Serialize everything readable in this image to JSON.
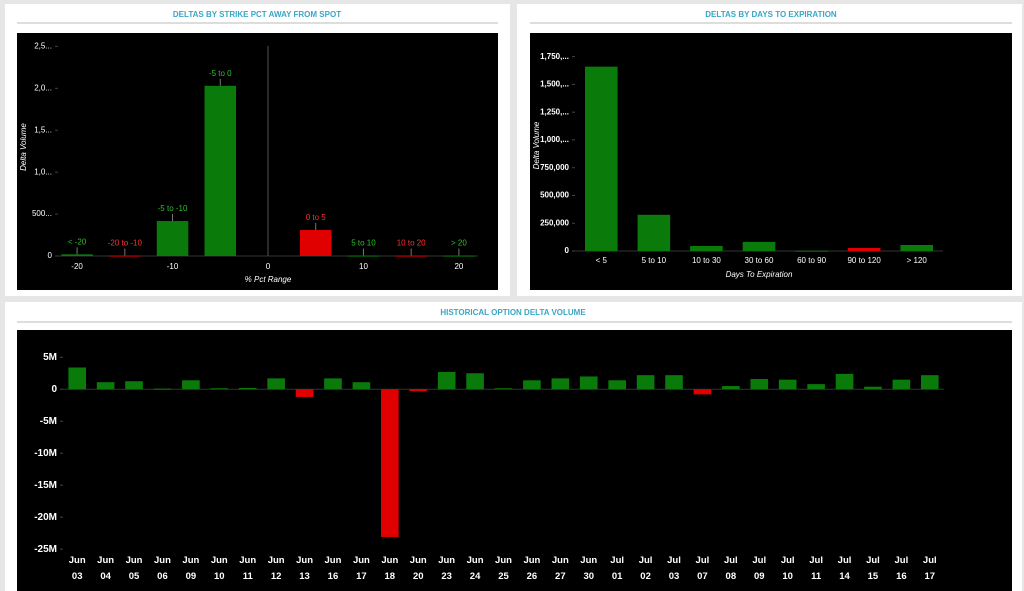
{
  "chart_data": [
    {
      "type": "bar",
      "title": "DELTAS BY STRIKE PCT AWAY FROM SPOT",
      "x_label": "% Pct Range",
      "y_label": "Delta Volume",
      "categories": [
        "< -20",
        "-20 to -10",
        "-5 to -10",
        "-5 to 0",
        "0 to 5",
        "5 to 10",
        "10 to 20",
        "> 20"
      ],
      "x": [
        -20,
        -15,
        -10,
        -5,
        5,
        10,
        15,
        20
      ],
      "values": [
        20000,
        5000,
        417000,
        2030000,
        310000,
        5000,
        5000,
        5000
      ],
      "colors": [
        "#0a7a0a",
        "#e00000",
        "#0a7a0a",
        "#0a7a0a",
        "#e00000",
        "#0a7a0a",
        "#e00000",
        "#0a7a0a"
      ],
      "xlim": [
        -22,
        22
      ],
      "xticks": [
        -20,
        -10,
        0,
        10,
        20
      ],
      "ylim": [
        0,
        2600000
      ],
      "yticks": [
        0,
        {
          "value": 500000,
          "label": "500..."
        },
        {
          "value": 1000000,
          "label": "1,0..."
        },
        {
          "value": 1500000,
          "label": "1,5..."
        },
        {
          "value": 2000000,
          "label": "2,0..."
        },
        {
          "value": 2500000,
          "label": "2,5..."
        }
      ],
      "data_labels": true
    },
    {
      "type": "bar",
      "title": "DELTAS BY DAYS TO EXPIRATION",
      "x_label": "Days To Expiration",
      "y_label": "Delta Volume",
      "categories": [
        "< 5",
        "5 to 10",
        "10 to 30",
        "30 to 60",
        "60 to 90",
        "90 to 120",
        "> 120"
      ],
      "values": [
        1660000,
        326000,
        45000,
        82000,
        3000,
        27000,
        54000
      ],
      "colors": [
        "#0a7a0a",
        "#0a7a0a",
        "#0a7a0a",
        "#0a7a0a",
        "#0a7a0a",
        "#e00000",
        "#0a7a0a"
      ],
      "ylim": [
        0,
        1900000
      ],
      "yticks": [
        0,
        {
          "value": 250000,
          "label": "250,000"
        },
        {
          "value": 500000,
          "label": "500,000"
        },
        {
          "value": 750000,
          "label": "750,000"
        },
        {
          "value": 1000000,
          "label": "1,000,..."
        },
        {
          "value": 1250000,
          "label": "1,250,..."
        },
        {
          "value": 1500000,
          "label": "1,500,..."
        },
        {
          "value": 1750000,
          "label": "1,750,..."
        }
      ]
    },
    {
      "type": "bar",
      "title": "HISTORICAL OPTION DELTA VOLUME",
      "categories": [
        "Jun 03",
        "Jun 04",
        "Jun 05",
        "Jun 06",
        "Jun 09",
        "Jun 10",
        "Jun 11",
        "Jun 12",
        "Jun 13",
        "Jun 16",
        "Jun 17",
        "Jun 18",
        "Jun 20",
        "Jun 23",
        "Jun 24",
        "Jun 25",
        "Jun 26",
        "Jun 27",
        "Jun 30",
        "Jul 01",
        "Jul 02",
        "Jul 03",
        "Jul 07",
        "Jul 08",
        "Jul 09",
        "Jul 10",
        "Jul 11",
        "Jul 14",
        "Jul 15",
        "Jul 16",
        "Jul 17"
      ],
      "values": [
        3400000,
        1100000,
        1250000,
        100000,
        1400000,
        150000,
        200000,
        1700000,
        -1200000,
        1700000,
        1100000,
        -23100000,
        -300000,
        2700000,
        2500000,
        150000,
        1400000,
        1700000,
        2000000,
        1400000,
        2200000,
        2200000,
        -800000,
        500000,
        1600000,
        1500000,
        800000,
        2400000,
        400000,
        1500000,
        2200000
      ],
      "positive_color": "#0a7a0a",
      "negative_color": "#e00000",
      "ylim": [
        -26700000,
        7700000
      ],
      "yticks": [
        {
          "value": 5000000,
          "label": "5M"
        },
        0,
        {
          "value": -5000000,
          "label": "-5M"
        },
        {
          "value": -10000000,
          "label": "-10M"
        },
        {
          "value": -15000000,
          "label": "-15M"
        },
        {
          "value": -20000000,
          "label": "-20M"
        },
        {
          "value": -25000000,
          "label": "-25M"
        }
      ]
    }
  ]
}
